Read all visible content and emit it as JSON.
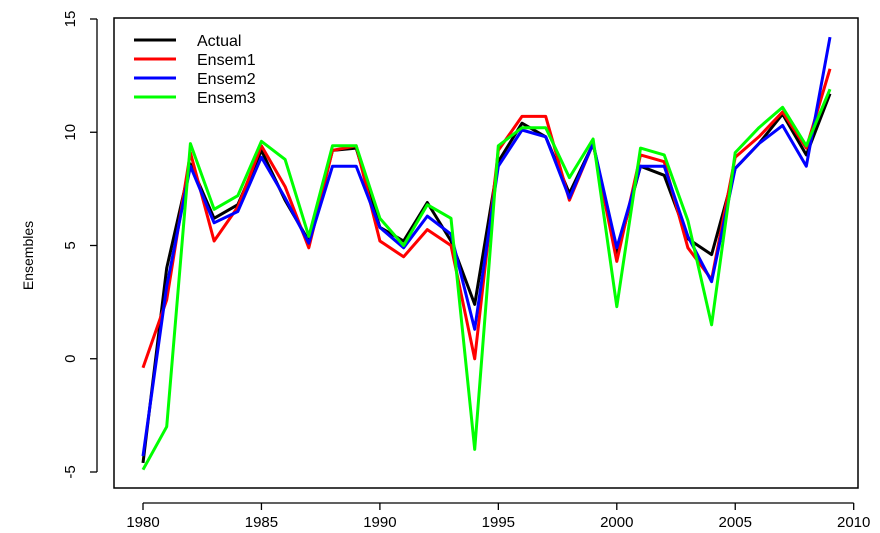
{
  "chart_data": {
    "type": "line",
    "title": "",
    "xlabel": "",
    "ylabel": "Ensembles",
    "xlim": [
      1980,
      2009
    ],
    "ylim": [
      -5,
      15
    ],
    "x_ticks": [
      "1980",
      "1985",
      "1990",
      "1995",
      "2000",
      "2005",
      "2010"
    ],
    "y_ticks": [
      "-5",
      "0",
      "5",
      "10",
      "15"
    ],
    "grid": false,
    "legend_position": "top-left",
    "x": [
      1980,
      1981,
      1982,
      1983,
      1984,
      1985,
      1986,
      1987,
      1988,
      1989,
      1990,
      1991,
      1992,
      1993,
      1994,
      1995,
      1996,
      1997,
      1998,
      1999,
      2000,
      2001,
      2002,
      2003,
      2004,
      2005,
      2006,
      2007,
      2008,
      2009
    ],
    "series": [
      {
        "name": "Actual",
        "color": "#000000",
        "values": [
          -4.6,
          4.0,
          8.6,
          6.2,
          6.8,
          9.2,
          7.0,
          5.2,
          9.2,
          9.3,
          5.8,
          5.2,
          6.9,
          5.2,
          2.4,
          8.7,
          10.4,
          9.8,
          7.3,
          9.5,
          4.6,
          8.5,
          8.1,
          5.3,
          4.6,
          8.4,
          9.5,
          10.8,
          9.0,
          11.7
        ]
      },
      {
        "name": "Ensem1",
        "color": "#ff0000",
        "values": [
          -0.4,
          2.6,
          9.1,
          5.2,
          6.7,
          9.4,
          7.6,
          4.9,
          9.2,
          9.4,
          5.2,
          4.5,
          5.7,
          5.0,
          0.0,
          9.2,
          10.7,
          10.7,
          7.0,
          9.5,
          4.3,
          9.0,
          8.7,
          4.9,
          3.5,
          8.9,
          9.8,
          10.9,
          9.3,
          12.8
        ]
      },
      {
        "name": "Ensem2",
        "color": "#0000ff",
        "values": [
          -4.3,
          3.2,
          8.5,
          6.0,
          6.5,
          8.9,
          7.1,
          5.1,
          8.5,
          8.5,
          5.8,
          4.9,
          6.3,
          5.5,
          1.3,
          8.5,
          10.1,
          9.8,
          7.1,
          9.5,
          4.9,
          8.5,
          8.5,
          5.4,
          3.4,
          8.4,
          9.5,
          10.3,
          8.5,
          14.2
        ]
      },
      {
        "name": "Ensem3",
        "color": "#00ff00",
        "values": [
          -4.9,
          -3.0,
          9.5,
          6.6,
          7.2,
          9.6,
          8.8,
          5.4,
          9.4,
          9.4,
          6.2,
          5.0,
          6.8,
          6.2,
          -4.0,
          9.4,
          10.2,
          10.2,
          8.0,
          9.7,
          2.3,
          9.3,
          9.0,
          6.1,
          1.5,
          9.1,
          10.2,
          11.1,
          9.4,
          11.9
        ]
      }
    ]
  }
}
